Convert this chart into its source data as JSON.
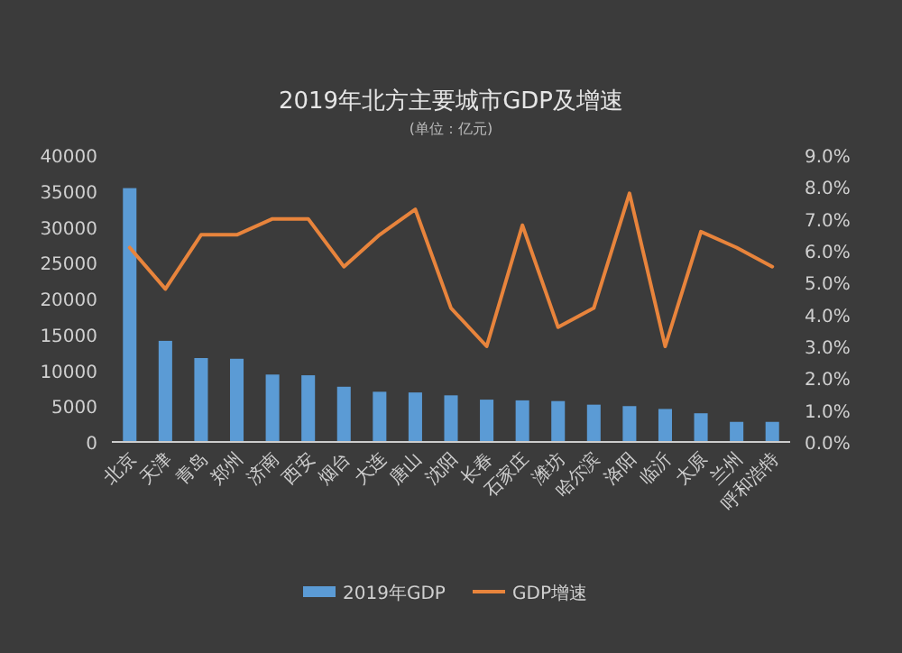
{
  "chart_data": {
    "type": "bar",
    "title": "2019年北方主要城市GDP及增速",
    "subtitle": "(单位：亿元)",
    "categories": [
      "北京",
      "天津",
      "青岛",
      "郑州",
      "济南",
      "西安",
      "烟台",
      "大连",
      "唐山",
      "沈阳",
      "长春",
      "石家庄",
      "潍坊",
      "哈尔滨",
      "洛阳",
      "临沂",
      "太原",
      "兰州",
      "呼和浩特"
    ],
    "series": [
      {
        "name": "2019年GDP",
        "color": "#5b9bd5",
        "values": [
          35400,
          14100,
          11700,
          11600,
          9400,
          9300,
          7700,
          7000,
          6900,
          6500,
          5900,
          5800,
          5700,
          5200,
          5000,
          4600,
          4000,
          2800,
          2800
        ]
      },
      {
        "name": "GDP增速",
        "type": "line",
        "axis": "y2",
        "color": "#e8843c",
        "values": [
          6.1,
          4.8,
          6.5,
          6.5,
          7.0,
          7.0,
          5.5,
          6.5,
          7.3,
          4.2,
          3.0,
          6.8,
          3.6,
          4.2,
          7.8,
          3.0,
          6.6,
          6.1,
          5.5
        ]
      }
    ],
    "ylim": [
      0,
      40000
    ],
    "yticks": [
      0,
      5000,
      10000,
      15000,
      20000,
      25000,
      30000,
      35000,
      40000
    ],
    "y2lim": [
      0,
      9
    ],
    "y2ticks": [
      {
        "value": 0,
        "label": "0.0%"
      },
      {
        "value": 1,
        "label": "1.0%"
      },
      {
        "value": 2,
        "label": "2.0%"
      },
      {
        "value": 3,
        "label": "3.0%"
      },
      {
        "value": 4,
        "label": "4.0%"
      },
      {
        "value": 5,
        "label": "5.0%"
      },
      {
        "value": 6,
        "label": "6.0%"
      },
      {
        "value": 7,
        "label": "7.0%"
      },
      {
        "value": 8,
        "label": "8.0%"
      },
      {
        "value": 9,
        "label": "9.0%"
      }
    ],
    "grid": false,
    "legend": "bottom"
  }
}
